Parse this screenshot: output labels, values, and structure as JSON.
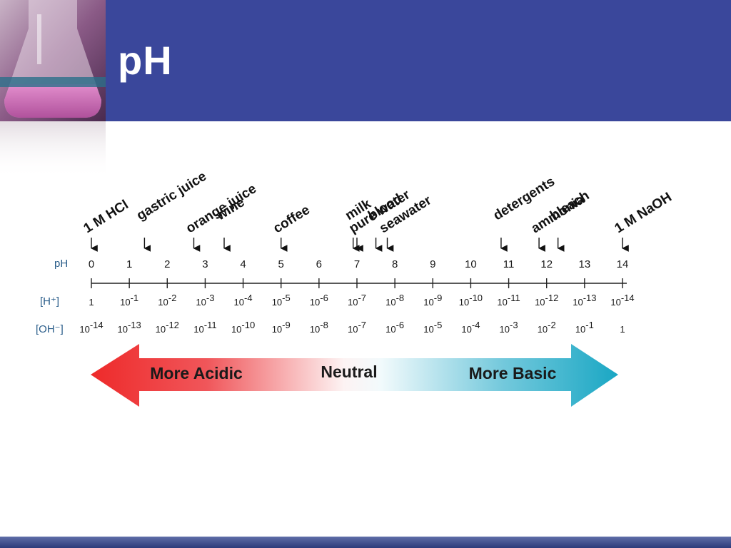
{
  "slide": {
    "title": "pH"
  },
  "scale": {
    "ph_label": "pH",
    "h_label": "[H⁺]",
    "oh_label": "[OH⁻]",
    "ph_values": [
      "0",
      "1",
      "2",
      "3",
      "4",
      "5",
      "6",
      "7",
      "8",
      "9",
      "10",
      "11",
      "12",
      "13",
      "14"
    ],
    "h_concentrations": [
      {
        "base": "1",
        "exp": ""
      },
      {
        "base": "10",
        "exp": "-1"
      },
      {
        "base": "10",
        "exp": "-2"
      },
      {
        "base": "10",
        "exp": "-3"
      },
      {
        "base": "10",
        "exp": "-4"
      },
      {
        "base": "10",
        "exp": "-5"
      },
      {
        "base": "10",
        "exp": "-6"
      },
      {
        "base": "10",
        "exp": "-7"
      },
      {
        "base": "10",
        "exp": "-8"
      },
      {
        "base": "10",
        "exp": "-9"
      },
      {
        "base": "10",
        "exp": "-10"
      },
      {
        "base": "10",
        "exp": "-11"
      },
      {
        "base": "10",
        "exp": "-12"
      },
      {
        "base": "10",
        "exp": "-13"
      },
      {
        "base": "10",
        "exp": "-14"
      }
    ],
    "oh_concentrations": [
      {
        "base": "10",
        "exp": "-14"
      },
      {
        "base": "10",
        "exp": "-13"
      },
      {
        "base": "10",
        "exp": "-12"
      },
      {
        "base": "10",
        "exp": "-11"
      },
      {
        "base": "10",
        "exp": "-10"
      },
      {
        "base": "10",
        "exp": "-9"
      },
      {
        "base": "10",
        "exp": "-8"
      },
      {
        "base": "10",
        "exp": "-7"
      },
      {
        "base": "10",
        "exp": "-6"
      },
      {
        "base": "10",
        "exp": "-5"
      },
      {
        "base": "10",
        "exp": "-4"
      },
      {
        "base": "10",
        "exp": "-3"
      },
      {
        "base": "10",
        "exp": "-2"
      },
      {
        "base": "10",
        "exp": "-1"
      },
      {
        "base": "1",
        "exp": ""
      }
    ]
  },
  "substances": [
    {
      "name": "1 M HCl",
      "ph": 0
    },
    {
      "name": "gastric juice",
      "ph": 1.4
    },
    {
      "name": "orange juice",
      "ph": 2.7
    },
    {
      "name": "wine",
      "ph": 3.5
    },
    {
      "name": "coffee",
      "ph": 5
    },
    {
      "name": "milk",
      "ph": 6.9
    },
    {
      "name": "pure water",
      "ph": 7
    },
    {
      "name": "blood",
      "ph": 7.5
    },
    {
      "name": "seawater",
      "ph": 7.8
    },
    {
      "name": "detergents",
      "ph": 10.8
    },
    {
      "name": "ammonia",
      "ph": 11.8
    },
    {
      "name": "bleach",
      "ph": 12.3
    },
    {
      "name": "1 M NaOH",
      "ph": 14
    }
  ],
  "spectrum": {
    "acidic_label": "More Acidic",
    "neutral_label": "Neutral",
    "basic_label": "More Basic",
    "acid_color": "#ee2a2a",
    "base_color": "#1aa7c4"
  },
  "colors": {
    "header": "#3a479b",
    "footer": "#2c3a7a",
    "row_label": "#2a5d8a"
  }
}
